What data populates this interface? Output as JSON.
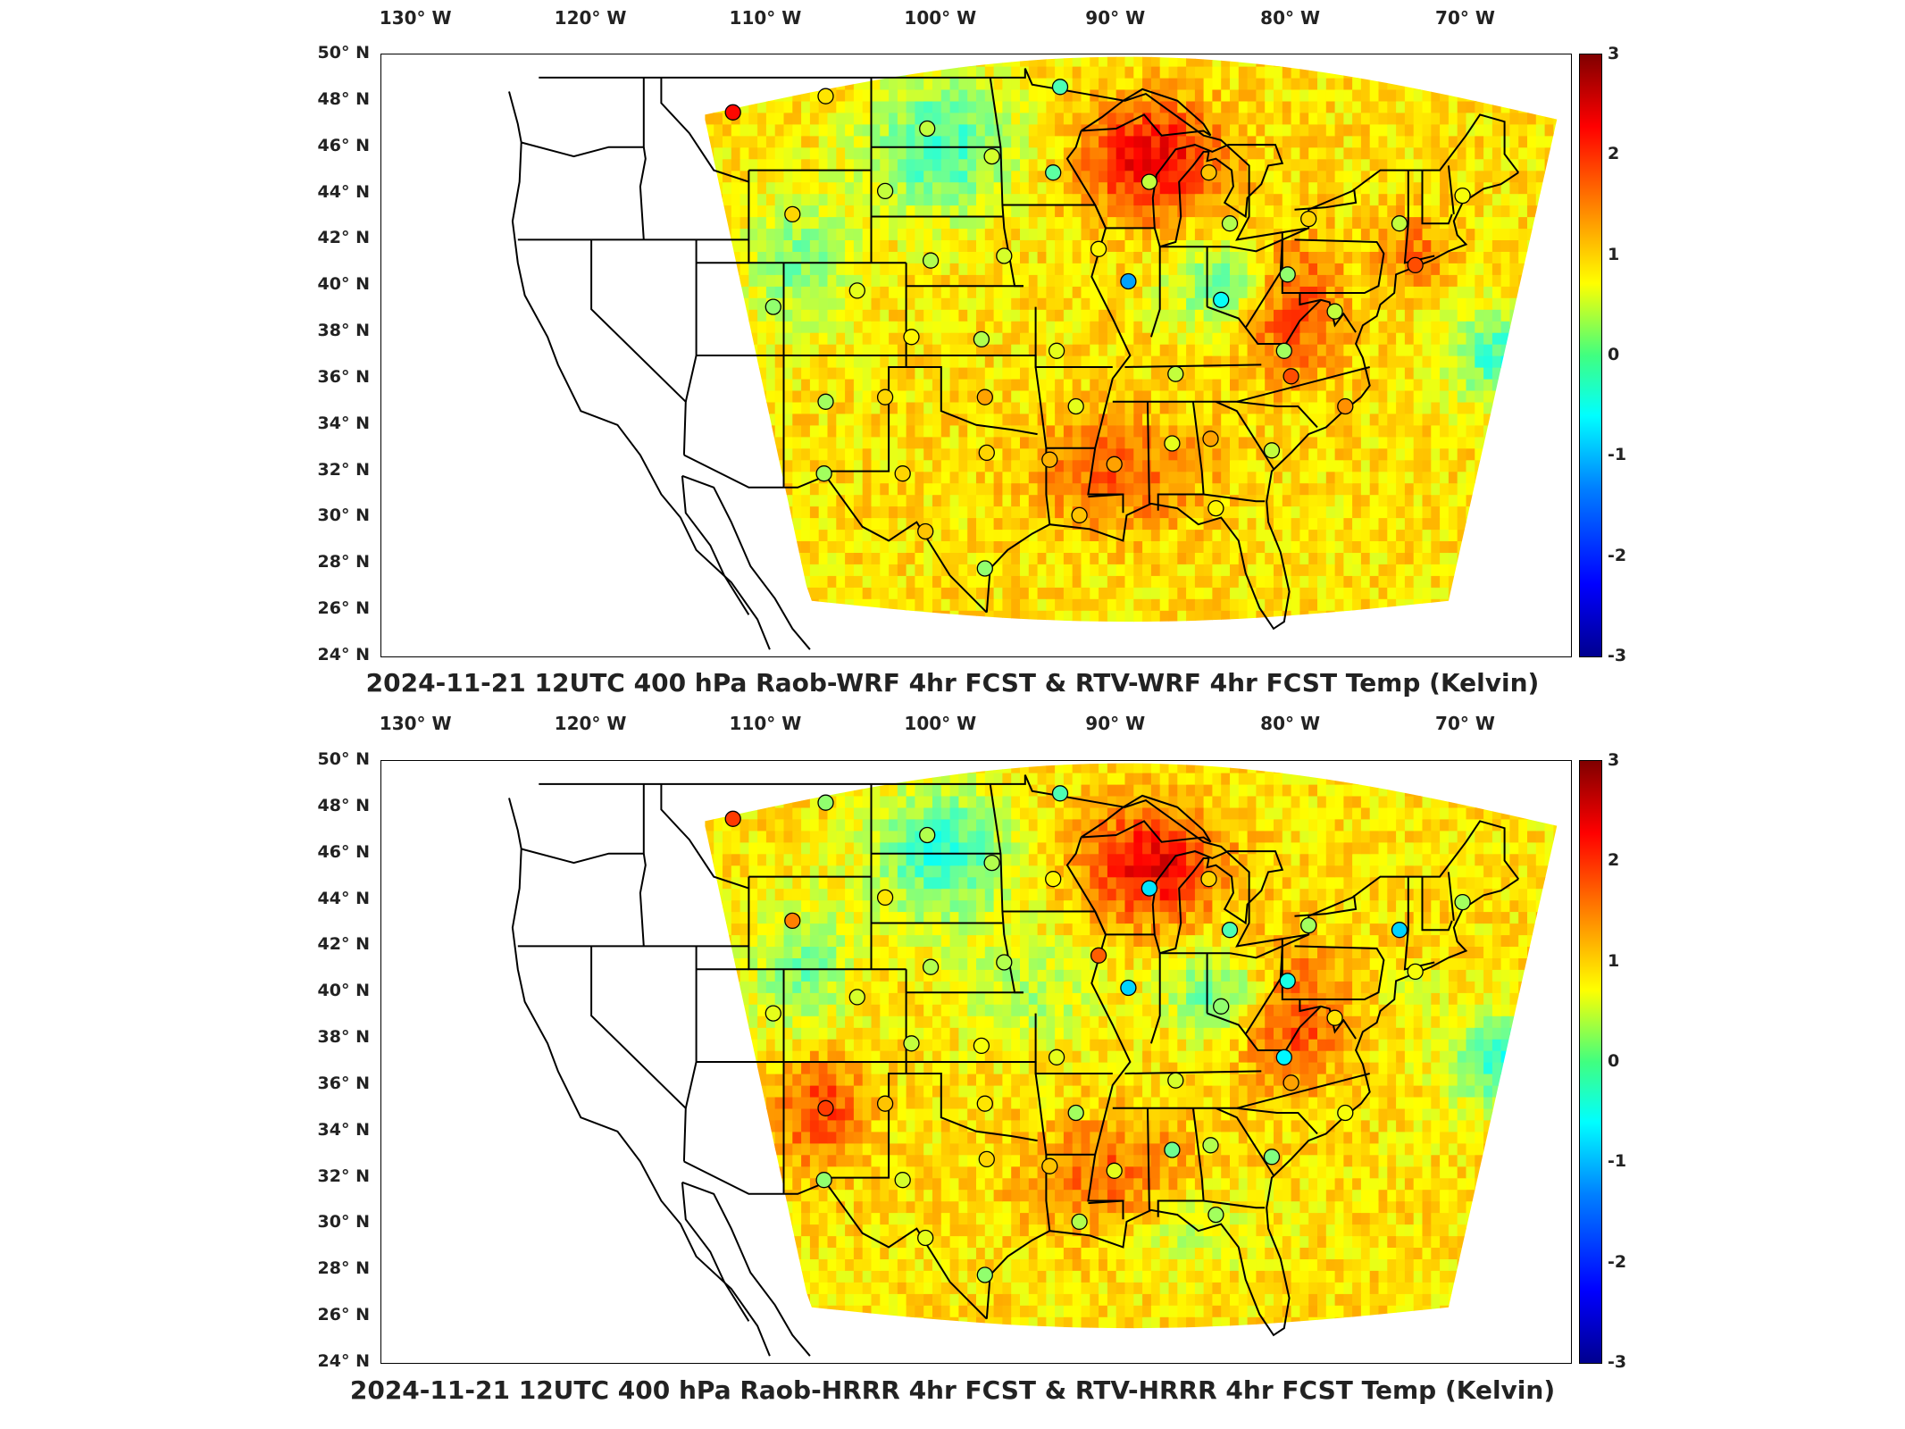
{
  "panels": [
    {
      "id": "wrf",
      "title": "2024-11-21 12UTC 400 hPa Raob-WRF 4hr FCST & RTV-WRF 4hr FCST Temp (Kelvin)",
      "model": "WRF"
    },
    {
      "id": "hrrr",
      "title": "2024-11-21 12UTC 400 hPa Raob-HRRR 4hr FCST & RTV-HRRR 4hr FCST Temp (Kelvin)",
      "model": "HRRR"
    }
  ],
  "lon_labels": [
    "130° W",
    "120° W",
    "110° W",
    "100° W",
    "90° W",
    "80° W",
    "70° W"
  ],
  "lat_labels": [
    "50° N",
    "48° N",
    "46° N",
    "44° N",
    "42° N",
    "40° N",
    "38° N",
    "36° N",
    "34° N",
    "32° N",
    "30° N",
    "28° N",
    "26° N",
    "24° N"
  ],
  "colorbar": {
    "min": -3,
    "max": 3,
    "ticks": [
      "3",
      "2",
      "1",
      "0",
      "-1",
      "-2",
      "-3"
    ],
    "colormap": "jet"
  },
  "chart_data": {
    "type": "heatmap",
    "variable": "Temp (Kelvin)",
    "level": "400 hPa",
    "valid_time": "2024-11-21 12UTC",
    "xlim": [
      -132,
      -64
    ],
    "ylim": [
      24,
      50
    ],
    "clim": [
      -3,
      3
    ],
    "raob_stations": [
      {
        "lon": -111.9,
        "lat": 47.5,
        "wrf": 2.2,
        "hrrr": 1.9
      },
      {
        "lon": -106.6,
        "lat": 48.2,
        "wrf": 0.9,
        "hrrr": 0.1
      },
      {
        "lon": -100.8,
        "lat": 46.8,
        "wrf": 0.4,
        "hrrr": 0.3
      },
      {
        "lon": -97.1,
        "lat": 45.6,
        "wrf": 0.5,
        "hrrr": 0.3
      },
      {
        "lon": -93.2,
        "lat": 48.6,
        "wrf": -0.3,
        "hrrr": -0.3
      },
      {
        "lon": -93.6,
        "lat": 44.9,
        "wrf": -0.2,
        "hrrr": 0.8
      },
      {
        "lon": -88.1,
        "lat": 44.5,
        "wrf": 0.4,
        "hrrr": -0.9
      },
      {
        "lon": -84.7,
        "lat": 44.9,
        "wrf": 1.1,
        "hrrr": 1.0
      },
      {
        "lon": -108.5,
        "lat": 43.1,
        "wrf": 1.0,
        "hrrr": 1.5
      },
      {
        "lon": -103.2,
        "lat": 44.1,
        "wrf": 0.4,
        "hrrr": 0.9
      },
      {
        "lon": -100.6,
        "lat": 41.1,
        "wrf": 0.3,
        "hrrr": 0.3
      },
      {
        "lon": -96.4,
        "lat": 41.3,
        "wrf": 0.5,
        "hrrr": 0.3
      },
      {
        "lon": -91.0,
        "lat": 41.6,
        "wrf": 0.8,
        "hrrr": 1.7
      },
      {
        "lon": -89.3,
        "lat": 40.2,
        "wrf": -1.3,
        "hrrr": -1.0
      },
      {
        "lon": -83.5,
        "lat": 42.7,
        "wrf": 0.3,
        "hrrr": -0.3
      },
      {
        "lon": -79.0,
        "lat": 42.9,
        "wrf": 1.0,
        "hrrr": 0.2
      },
      {
        "lon": -73.8,
        "lat": 42.7,
        "wrf": 0.4,
        "hrrr": -1.0
      },
      {
        "lon": -70.2,
        "lat": 43.9,
        "wrf": 0.7,
        "hrrr": 0.2
      },
      {
        "lon": -72.9,
        "lat": 40.9,
        "wrf": 1.8,
        "hrrr": 0.7
      },
      {
        "lon": -80.2,
        "lat": 40.5,
        "wrf": 0.1,
        "hrrr": -0.6
      },
      {
        "lon": -84.0,
        "lat": 39.4,
        "wrf": -0.7,
        "hrrr": 0.1
      },
      {
        "lon": -77.5,
        "lat": 38.9,
        "wrf": 0.4,
        "hrrr": 0.9
      },
      {
        "lon": -109.6,
        "lat": 39.1,
        "wrf": 0.1,
        "hrrr": 0.6
      },
      {
        "lon": -104.8,
        "lat": 39.8,
        "wrf": 0.6,
        "hrrr": 0.5
      },
      {
        "lon": -97.7,
        "lat": 37.7,
        "wrf": 0.3,
        "hrrr": 0.7
      },
      {
        "lon": -101.7,
        "lat": 37.8,
        "wrf": 0.8,
        "hrrr": 0.4
      },
      {
        "lon": -93.4,
        "lat": 37.2,
        "wrf": 0.6,
        "hrrr": 0.6
      },
      {
        "lon": -86.6,
        "lat": 36.2,
        "wrf": 0.4,
        "hrrr": 0.5
      },
      {
        "lon": -80.4,
        "lat": 37.2,
        "wrf": 0.2,
        "hrrr": -0.8
      },
      {
        "lon": -80.0,
        "lat": 36.1,
        "wrf": 1.8,
        "hrrr": 1.3
      },
      {
        "lon": -76.9,
        "lat": 34.8,
        "wrf": 1.4,
        "hrrr": 0.7
      },
      {
        "lon": -106.6,
        "lat": 35.0,
        "wrf": 0.2,
        "hrrr": 1.9
      },
      {
        "lon": -103.2,
        "lat": 35.2,
        "wrf": 1.0,
        "hrrr": 1.1
      },
      {
        "lon": -97.5,
        "lat": 35.2,
        "wrf": 1.3,
        "hrrr": 0.9
      },
      {
        "lon": -92.3,
        "lat": 34.8,
        "wrf": 0.6,
        "hrrr": 0.2
      },
      {
        "lon": -86.8,
        "lat": 33.2,
        "wrf": 0.6,
        "hrrr": -0.1
      },
      {
        "lon": -84.6,
        "lat": 33.4,
        "wrf": 1.3,
        "hrrr": 0.3
      },
      {
        "lon": -81.1,
        "lat": 32.9,
        "wrf": 0.4,
        "hrrr": 0.0
      },
      {
        "lon": -106.7,
        "lat": 31.9,
        "wrf": 0.2,
        "hrrr": 0.1
      },
      {
        "lon": -102.2,
        "lat": 31.9,
        "wrf": 1.0,
        "hrrr": 0.5
      },
      {
        "lon": -97.4,
        "lat": 32.8,
        "wrf": 1.0,
        "hrrr": 1.0
      },
      {
        "lon": -93.8,
        "lat": 32.5,
        "wrf": 1.2,
        "hrrr": 1.1
      },
      {
        "lon": -90.1,
        "lat": 32.3,
        "wrf": 1.3,
        "hrrr": 0.6
      },
      {
        "lon": -92.1,
        "lat": 30.1,
        "wrf": 1.1,
        "hrrr": 0.3
      },
      {
        "lon": -84.3,
        "lat": 30.4,
        "wrf": 0.8,
        "hrrr": 0.2
      },
      {
        "lon": -100.9,
        "lat": 29.4,
        "wrf": 1.1,
        "hrrr": 0.6
      },
      {
        "lon": -97.5,
        "lat": 27.8,
        "wrf": 0.1,
        "hrrr": 0.1
      }
    ]
  }
}
